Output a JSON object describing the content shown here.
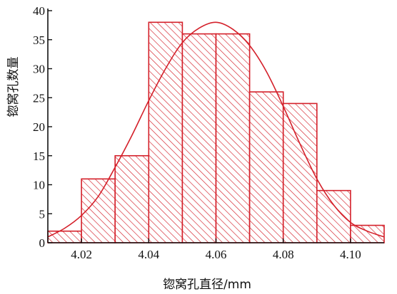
{
  "chart_data": {
    "type": "bar",
    "title": "",
    "xlabel": "锪窝孔直径/mm",
    "ylabel": "锪窝孔数量",
    "bin_edges": [
      4.01,
      4.02,
      4.03,
      4.04,
      4.05,
      4.06,
      4.07,
      4.08,
      4.09,
      4.1,
      4.11
    ],
    "values": [
      2,
      11,
      15,
      38,
      36,
      36,
      26,
      24,
      9,
      3
    ],
    "x_ticks": [
      "4.02",
      "4.04",
      "4.06",
      "4.08",
      "4.10"
    ],
    "y_ticks": [
      "0",
      "5",
      "10",
      "15",
      "20",
      "25",
      "30",
      "35",
      "40"
    ],
    "xlim": [
      4.01,
      4.11
    ],
    "ylim": [
      0,
      40
    ],
    "grid": false,
    "colors": {
      "bars": "#d4202a",
      "curve": "#d4202a",
      "axis": "#111111"
    },
    "series": [
      {
        "type": "histogram",
        "values": [
          2,
          11,
          15,
          38,
          36,
          36,
          26,
          24,
          9,
          3
        ]
      },
      {
        "type": "line",
        "x": [
          4.01,
          4.015,
          4.02,
          4.025,
          4.03,
          4.035,
          4.04,
          4.045,
          4.05,
          4.055,
          4.06,
          4.065,
          4.07,
          4.075,
          4.08,
          4.085,
          4.09,
          4.095,
          4.1,
          4.105,
          4.11
        ],
        "y": [
          1.0,
          2.5,
          4.7,
          8.0,
          13.0,
          18.5,
          24.5,
          30.0,
          34.5,
          37.0,
          38.0,
          36.8,
          34.0,
          29.5,
          23.5,
          17.0,
          11.0,
          6.5,
          3.5,
          2.0,
          1.0
        ]
      }
    ]
  }
}
